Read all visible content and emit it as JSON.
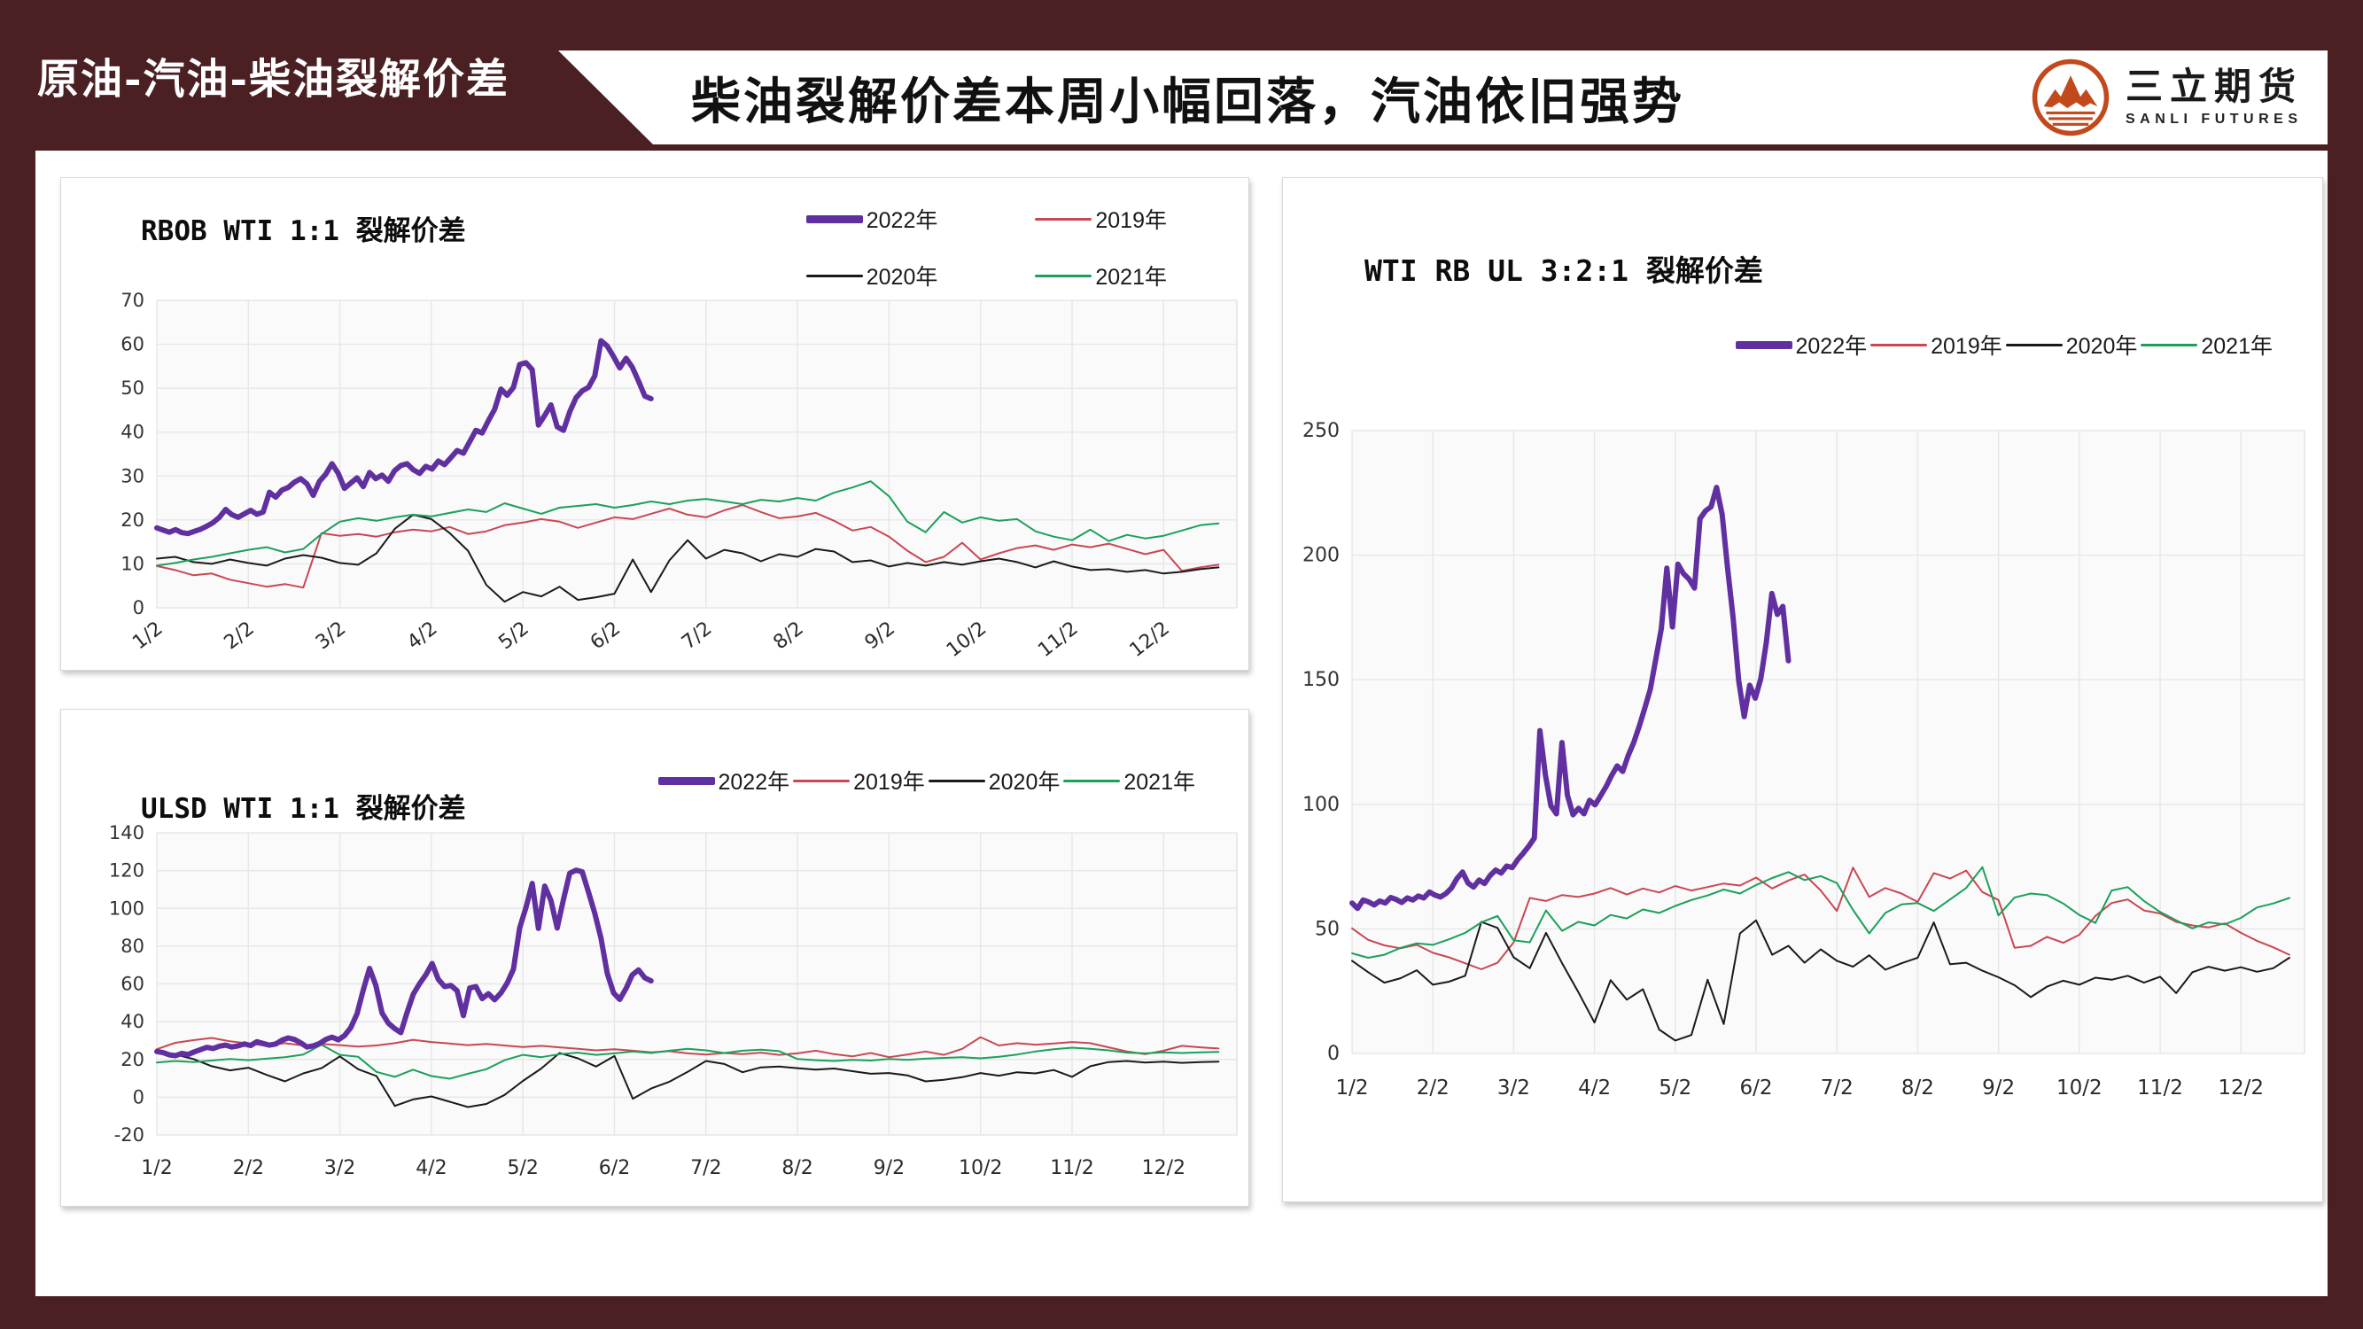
{
  "header": {
    "section_label": "原油-汽油-柴油裂解价差",
    "main_title": "柴油裂解价差本周小幅回落，汽油依旧强势",
    "logo": {
      "name_cn": "三立期货",
      "name_en": "SANLI FUTURES"
    }
  },
  "colors": {
    "maroon": "#4A2023",
    "logo_orange": "#C1491C",
    "purple": "#6130A0",
    "red": "#C94753",
    "black": "#1A1A1A",
    "green": "#1BA05A",
    "plot_bg": "#FAFAFA",
    "grid": "#E7E7E7"
  },
  "chart_data": [
    {
      "type": "line",
      "title": "RBOB WTI 1:1 裂解价差",
      "ylim": [
        0,
        70
      ],
      "yticks": [
        0,
        10,
        20,
        30,
        40,
        50,
        60,
        70
      ],
      "xticklabels": [
        "1/2",
        "2/2",
        "3/2",
        "4/2",
        "5/2",
        "6/2",
        "7/2",
        "8/2",
        "9/2",
        "10/2",
        "11/2",
        "12/2"
      ],
      "grid": true,
      "legend_position": "top-right",
      "series": [
        {
          "name": "2022年",
          "color": "#6130A0",
          "width": 6,
          "x_start": 0,
          "x_end": 5.4,
          "y": [
            18.2,
            17.7,
            17.2,
            17.8,
            17.1,
            16.9,
            17.4,
            17.9,
            18.6,
            19.4,
            20.6,
            22.4,
            21.2,
            20.6,
            21.4,
            22.2,
            21.3,
            21.8,
            26.3,
            25.2,
            26.8,
            27.4,
            28.6,
            29.4,
            28.2,
            25.6,
            28.8,
            30.4,
            32.8,
            30.6,
            27.2,
            28.4,
            29.6,
            27.6,
            30.8,
            29.4,
            30.2,
            28.8,
            31.2,
            32.4,
            32.8,
            31.4,
            30.6,
            32.2,
            31.6,
            33.4,
            32.6,
            34.2,
            35.8,
            35.2,
            37.8,
            40.4,
            39.8,
            42.6,
            45.2,
            49.8,
            48.4,
            50.2,
            55.4,
            55.8,
            54.2,
            41.6,
            43.8,
            46.2,
            41.2,
            40.4,
            44.6,
            47.8,
            49.4,
            50.2,
            52.8,
            60.8,
            59.6,
            57.2,
            54.6,
            56.8,
            54.8,
            51.6,
            48.2,
            47.6
          ]
        },
        {
          "name": "2019年",
          "color": "#C94753",
          "width": 2,
          "x_start": 0,
          "x_end": 11.6,
          "y": [
            9.5,
            8.6,
            7.4,
            7.8,
            6.4,
            5.6,
            4.8,
            5.4,
            4.6,
            17.0,
            16.4,
            16.8,
            16.2,
            17.2,
            17.8,
            17.4,
            18.4,
            16.8,
            17.4,
            18.8,
            19.4,
            20.2,
            19.6,
            18.2,
            19.4,
            20.6,
            20.2,
            21.4,
            22.6,
            21.2,
            20.6,
            22.2,
            23.4,
            21.8,
            20.4,
            20.8,
            21.6,
            19.8,
            17.6,
            18.4,
            16.2,
            13.0,
            10.4,
            11.6,
            14.8,
            11.0,
            12.4,
            13.6,
            14.2,
            13.2,
            14.4,
            13.8,
            14.6,
            13.4,
            12.2,
            13.2,
            8.4,
            9.2,
            9.8
          ]
        },
        {
          "name": "2020年",
          "color": "#1A1A1A",
          "width": 2,
          "x_start": 0,
          "x_end": 11.6,
          "y": [
            11.2,
            11.6,
            10.4,
            10.0,
            11.0,
            10.2,
            9.6,
            11.2,
            12.0,
            11.4,
            10.2,
            9.8,
            12.4,
            18.0,
            21.2,
            20.2,
            17.0,
            13.0,
            5.2,
            1.4,
            3.6,
            2.6,
            4.8,
            1.8,
            2.4,
            3.2,
            11.0,
            3.6,
            10.8,
            15.4,
            11.2,
            13.2,
            12.4,
            10.6,
            12.2,
            11.6,
            13.4,
            12.8,
            10.4,
            10.8,
            9.4,
            10.2,
            9.6,
            10.4,
            9.8,
            10.6,
            11.2,
            10.4,
            9.2,
            10.6,
            9.4,
            8.6,
            8.8,
            8.2,
            8.6,
            7.8,
            8.2,
            8.8,
            9.2
          ]
        },
        {
          "name": "2021年",
          "color": "#1BA05A",
          "width": 2,
          "x_start": 0,
          "x_end": 11.6,
          "y": [
            9.6,
            10.2,
            11.0,
            11.6,
            12.4,
            13.2,
            13.8,
            12.6,
            13.4,
            16.8,
            19.6,
            20.4,
            19.8,
            20.6,
            21.2,
            20.8,
            21.6,
            22.4,
            21.8,
            23.8,
            22.6,
            21.4,
            22.8,
            23.2,
            23.6,
            22.8,
            23.4,
            24.2,
            23.6,
            24.4,
            24.8,
            24.2,
            23.6,
            24.6,
            24.2,
            25.0,
            24.4,
            26.2,
            27.4,
            28.8,
            25.4,
            19.6,
            17.2,
            21.8,
            19.4,
            20.6,
            19.8,
            20.2,
            17.4,
            16.2,
            15.4,
            17.8,
            15.2,
            16.6,
            15.8,
            16.4,
            17.6,
            18.8,
            19.2
          ]
        }
      ]
    },
    {
      "type": "line",
      "title": "ULSD WTI 1:1 裂解价差",
      "ylim": [
        -20,
        140
      ],
      "yticks": [
        -20,
        0,
        20,
        40,
        60,
        80,
        100,
        120,
        140
      ],
      "xticklabels": [
        "1/2",
        "2/2",
        "3/2",
        "4/2",
        "5/2",
        "6/2",
        "7/2",
        "8/2",
        "9/2",
        "10/2",
        "11/2",
        "12/2"
      ],
      "grid": true,
      "legend_position": "top-right",
      "series": [
        {
          "name": "2022年",
          "color": "#6130A0",
          "width": 6,
          "x_start": 0,
          "x_end": 5.4,
          "y": [
            24.2,
            23.6,
            22.4,
            22.0,
            23.2,
            22.6,
            24.0,
            25.2,
            26.4,
            25.8,
            27.0,
            27.6,
            26.6,
            27.2,
            28.2,
            27.4,
            29.4,
            28.4,
            27.6,
            28.2,
            30.2,
            31.4,
            30.6,
            28.8,
            26.6,
            27.2,
            28.4,
            30.6,
            31.8,
            30.4,
            32.6,
            36.8,
            44.2,
            56.8,
            68.2,
            59.4,
            44.6,
            39.2,
            36.4,
            34.2,
            44.8,
            54.6,
            60.2,
            64.8,
            70.8,
            62.4,
            58.6,
            59.2,
            56.4,
            43.2,
            57.8,
            58.6,
            52.2,
            54.8,
            51.6,
            55.2,
            60.4,
            67.8,
            89.6,
            100.4,
            113.2,
            89.4,
            111.8,
            104.2,
            89.6,
            104.8,
            118.6,
            120.2,
            119.4,
            108.6,
            97.4,
            84.2,
            65.6,
            55.2,
            51.8,
            57.6,
            64.8,
            67.4,
            63.2,
            61.6
          ]
        },
        {
          "name": "2019年",
          "color": "#C94753",
          "width": 2,
          "x_start": 0,
          "x_end": 11.6,
          "y": [
            25.4,
            28.8,
            30.2,
            31.4,
            29.6,
            28.4,
            27.2,
            28.6,
            27.4,
            28.2,
            27.6,
            26.8,
            27.4,
            28.6,
            30.4,
            29.2,
            28.4,
            27.6,
            28.2,
            27.4,
            26.6,
            27.2,
            26.4,
            25.6,
            24.8,
            25.4,
            24.6,
            23.8,
            24.4,
            23.2,
            22.6,
            23.4,
            22.8,
            23.6,
            22.4,
            23.2,
            24.6,
            22.8,
            21.6,
            23.4,
            21.2,
            22.6,
            24.2,
            22.4,
            25.6,
            31.8,
            27.4,
            28.6,
            27.8,
            28.4,
            29.2,
            28.6,
            26.4,
            24.2,
            22.8,
            24.6,
            27.2,
            26.4,
            25.8
          ]
        },
        {
          "name": "2020年",
          "color": "#1A1A1A",
          "width": 2,
          "x_start": 0,
          "x_end": 11.6,
          "y": [
            23.4,
            22.6,
            20.2,
            16.4,
            14.2,
            15.6,
            11.8,
            8.4,
            12.6,
            15.4,
            21.6,
            14.8,
            11.2,
            -4.6,
            -1.2,
            0.4,
            -2.4,
            -5.2,
            -3.6,
            1.2,
            8.6,
            15.2,
            23.4,
            20.6,
            16.2,
            21.8,
            -0.8,
            4.6,
            8.2,
            13.4,
            19.2,
            17.6,
            13.2,
            15.8,
            16.2,
            15.4,
            14.6,
            15.2,
            13.8,
            12.4,
            12.8,
            11.6,
            8.4,
            9.2,
            10.6,
            12.8,
            11.4,
            13.2,
            12.6,
            14.4,
            10.8,
            16.4,
            18.6,
            19.2,
            18.4,
            18.8,
            18.2,
            18.6,
            18.8
          ]
        },
        {
          "name": "2021年",
          "color": "#1BA05A",
          "width": 2,
          "x_start": 0,
          "x_end": 11.6,
          "y": [
            18.4,
            19.2,
            18.6,
            19.4,
            20.2,
            19.6,
            20.4,
            21.2,
            22.6,
            27.8,
            22.4,
            21.4,
            13.4,
            10.8,
            14.6,
            11.2,
            9.8,
            12.4,
            14.8,
            19.6,
            22.4,
            21.2,
            22.8,
            23.6,
            22.4,
            23.2,
            24.2,
            23.4,
            24.6,
            25.6,
            24.8,
            23.4,
            24.6,
            25.2,
            24.4,
            20.2,
            19.6,
            19.2,
            19.8,
            19.4,
            20.2,
            19.8,
            20.4,
            20.8,
            21.2,
            20.6,
            21.4,
            22.6,
            24.2,
            25.4,
            26.2,
            25.6,
            24.8,
            23.6,
            23.2,
            23.8,
            23.4,
            23.8,
            24.0
          ]
        }
      ]
    },
    {
      "type": "line",
      "title": "WTI RB UL 3:2:1 裂解价差",
      "ylim": [
        0,
        250
      ],
      "yticks": [
        0,
        50,
        100,
        150,
        200,
        250
      ],
      "xticklabels": [
        "1/2",
        "2/2",
        "3/2",
        "4/2",
        "5/2",
        "6/2",
        "7/2",
        "8/2",
        "9/2",
        "10/2",
        "11/2",
        "12/2"
      ],
      "grid": true,
      "legend_position": "top-right",
      "series": [
        {
          "name": "2022年",
          "color": "#6130A0",
          "width": 6,
          "x_start": 0,
          "x_end": 5.4,
          "y": [
            60.4,
            58.2,
            61.6,
            60.8,
            59.6,
            61.2,
            60.4,
            62.6,
            61.8,
            60.6,
            62.4,
            61.6,
            63.2,
            62.4,
            64.8,
            63.6,
            62.8,
            64.2,
            66.4,
            70.2,
            72.8,
            68.4,
            66.8,
            69.6,
            68.2,
            71.4,
            73.6,
            72.4,
            75.2,
            74.6,
            77.8,
            80.4,
            83.2,
            86.4,
            129.6,
            111.8,
            99.4,
            96.2,
            124.8,
            103.6,
            95.8,
            98.4,
            96.2,
            101.6,
            99.8,
            103.4,
            107.2,
            111.6,
            115.4,
            113.2,
            119.6,
            124.8,
            131.4,
            138.6,
            146.2,
            158.4,
            170.6,
            194.8,
            171.2,
            196.4,
            192.6,
            190.4,
            186.8,
            214.6,
            217.8,
            219.4,
            227.2,
            216.4,
            194.6,
            174.8,
            149.6,
            135.2,
            147.8,
            142.6,
            150.4,
            164.8,
            184.6,
            176.2,
            179.4,
            157.6
          ]
        },
        {
          "name": "2019年",
          "color": "#C94753",
          "width": 2,
          "x_start": 0,
          "x_end": 11.6,
          "y": [
            50.2,
            45.6,
            43.4,
            42.2,
            43.6,
            40.4,
            38.6,
            36.2,
            33.8,
            36.4,
            44.6,
            62.4,
            61.2,
            63.6,
            62.8,
            64.2,
            66.4,
            63.8,
            66.2,
            64.6,
            67.2,
            65.4,
            66.8,
            68.2,
            67.4,
            70.6,
            66.2,
            69.4,
            71.8,
            65.4,
            57.2,
            74.6,
            62.8,
            66.4,
            64.2,
            60.8,
            72.4,
            70.2,
            73.4,
            64.8,
            61.6,
            42.4,
            43.2,
            46.8,
            44.4,
            47.6,
            55.2,
            60.4,
            61.8,
            57.4,
            56.2,
            52.8,
            51.4,
            50.6,
            52.2,
            48.4,
            45.2,
            42.6,
            39.6
          ]
        },
        {
          "name": "2020年",
          "color": "#1A1A1A",
          "width": 2,
          "x_start": 0,
          "x_end": 11.6,
          "y": [
            37.2,
            32.6,
            28.4,
            30.2,
            33.4,
            27.6,
            28.8,
            31.2,
            52.8,
            50.4,
            38.6,
            34.2,
            48.4,
            36.2,
            24.6,
            12.4,
            29.4,
            21.6,
            25.8,
            9.6,
            5.2,
            7.4,
            29.6,
            11.8,
            48.2,
            53.4,
            39.6,
            43.2,
            36.4,
            41.8,
            37.2,
            34.8,
            39.4,
            33.6,
            36.2,
            38.4,
            52.6,
            35.8,
            36.4,
            33.2,
            30.6,
            27.4,
            22.6,
            26.8,
            29.2,
            27.6,
            30.4,
            29.6,
            31.2,
            28.4,
            30.8,
            24.2,
            32.6,
            34.8,
            33.2,
            34.6,
            32.8,
            34.2,
            38.4
          ]
        },
        {
          "name": "2021年",
          "color": "#1BA05A",
          "width": 2,
          "x_start": 0,
          "x_end": 11.6,
          "y": [
            40.2,
            38.4,
            39.6,
            42.4,
            44.2,
            43.6,
            45.8,
            48.4,
            52.6,
            55.2,
            45.4,
            44.6,
            57.4,
            49.2,
            52.8,
            51.4,
            55.6,
            54.2,
            57.8,
            56.4,
            59.2,
            61.6,
            63.4,
            65.8,
            64.2,
            67.6,
            70.4,
            72.8,
            69.6,
            71.2,
            68.4,
            57.6,
            48.2,
            56.4,
            59.8,
            60.4,
            57.2,
            61.8,
            66.4,
            74.8,
            55.4,
            62.6,
            64.2,
            63.6,
            60.2,
            55.6,
            52.4,
            65.4,
            66.8,
            61.2,
            56.8,
            53.4,
            50.2,
            52.6,
            51.8,
            54.4,
            58.6,
            60.2,
            62.4
          ]
        }
      ]
    }
  ]
}
